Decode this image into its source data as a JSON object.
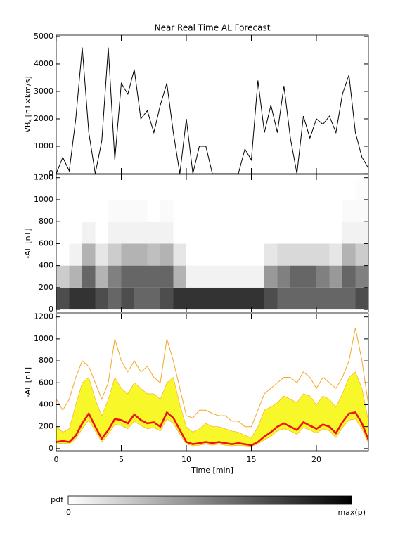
{
  "chart_data": [
    {
      "type": "line",
      "title": "Near Real Time AL Forecast",
      "ylabel": "VB",
      "ylabel_sub": "s",
      "ylabel_unit": "[nT×km/s]",
      "x": [
        0,
        0.5,
        1,
        1.5,
        2,
        2.5,
        3,
        3.5,
        4,
        4.5,
        5,
        5.5,
        6,
        6.5,
        7,
        7.5,
        8,
        8.5,
        9,
        9.5,
        10,
        10.5,
        11,
        11.5,
        12,
        12.5,
        13,
        13.5,
        14,
        14.5,
        15,
        15.5,
        16,
        16.5,
        17,
        17.5,
        18,
        18.5,
        19,
        19.5,
        20,
        20.5,
        21,
        21.5,
        22,
        22.5,
        23,
        23.5,
        24
      ],
      "series": [
        {
          "color": "#000000",
          "values": [
            0,
            600,
            100,
            2000,
            4600,
            1500,
            0,
            1200,
            4600,
            500,
            3300,
            2900,
            3800,
            2000,
            2300,
            1500,
            2500,
            3300,
            1500,
            0,
            2000,
            0,
            1000,
            1000,
            0,
            0,
            0,
            0,
            0,
            900,
            500,
            3400,
            1500,
            2500,
            1500,
            3200,
            1300,
            0,
            2100,
            1300,
            2000,
            1800,
            2100,
            1500,
            2900,
            3600,
            1500,
            600,
            200
          ]
        }
      ],
      "xlim": [
        0,
        24
      ],
      "xticks": [
        0,
        5,
        10,
        15,
        20
      ],
      "ylim": [
        0,
        5050
      ],
      "yticks": [
        0,
        1000,
        2000,
        3000,
        4000,
        5000
      ]
    },
    {
      "type": "heatmap",
      "ylabel": "-AL [nT]",
      "x_edges": [
        0,
        1,
        2,
        3,
        4,
        5,
        6,
        7,
        8,
        9,
        10,
        11,
        12,
        13,
        14,
        15,
        16,
        17,
        18,
        19,
        20,
        21,
        22,
        23,
        24
      ],
      "y_edges": [
        0,
        200,
        400,
        600,
        800,
        1000,
        1200
      ],
      "values": [
        [
          0.7,
          0.2,
          0,
          0,
          0,
          0
        ],
        [
          0.8,
          0.3,
          0.05,
          0,
          0,
          0
        ],
        [
          0.8,
          0.6,
          0.3,
          0.05,
          0,
          0
        ],
        [
          0.7,
          0.3,
          0.1,
          0,
          0,
          0
        ],
        [
          0.6,
          0.5,
          0.2,
          0.05,
          0.02,
          0
        ],
        [
          0.7,
          0.6,
          0.3,
          0.05,
          0.02,
          0
        ],
        [
          0.6,
          0.6,
          0.3,
          0.05,
          0.02,
          0
        ],
        [
          0.6,
          0.6,
          0.25,
          0.05,
          0,
          0
        ],
        [
          0.7,
          0.6,
          0.3,
          0.05,
          0.02,
          0
        ],
        [
          0.8,
          0.3,
          0.1,
          0,
          0,
          0
        ],
        [
          0.8,
          0.05,
          0,
          0,
          0,
          0
        ],
        [
          0.8,
          0.05,
          0,
          0,
          0,
          0
        ],
        [
          0.8,
          0.05,
          0,
          0,
          0,
          0
        ],
        [
          0.8,
          0.05,
          0,
          0,
          0,
          0
        ],
        [
          0.8,
          0.05,
          0,
          0,
          0,
          0
        ],
        [
          0.8,
          0.05,
          0,
          0,
          0,
          0
        ],
        [
          0.7,
          0.4,
          0.1,
          0,
          0,
          0
        ],
        [
          0.6,
          0.5,
          0.15,
          0,
          0,
          0
        ],
        [
          0.6,
          0.6,
          0.15,
          0,
          0,
          0
        ],
        [
          0.6,
          0.6,
          0.15,
          0,
          0,
          0
        ],
        [
          0.6,
          0.5,
          0.15,
          0,
          0,
          0
        ],
        [
          0.6,
          0.4,
          0.1,
          0,
          0,
          0
        ],
        [
          0.6,
          0.6,
          0.3,
          0.05,
          0.02,
          0
        ],
        [
          0.7,
          0.5,
          0.2,
          0.05,
          0.02,
          0.01
        ]
      ],
      "xlim": [
        0,
        24
      ],
      "xticks": [
        0,
        5,
        10,
        15,
        20
      ],
      "ylim": [
        -25,
        1230
      ],
      "yticks": [
        0,
        200,
        400,
        600,
        800,
        1000,
        1200
      ]
    },
    {
      "type": "band",
      "ylabel": "-AL [nT]",
      "xlabel": "Time [min]",
      "x": [
        0,
        0.5,
        1,
        1.5,
        2,
        2.5,
        3,
        3.5,
        4,
        4.5,
        5,
        5.5,
        6,
        6.5,
        7,
        7.5,
        8,
        8.5,
        9,
        9.5,
        10,
        10.5,
        11,
        11.5,
        12,
        12.5,
        13,
        13.5,
        14,
        14.5,
        15,
        15.5,
        16,
        16.5,
        17,
        17.5,
        18,
        18.5,
        19,
        19.5,
        20,
        20.5,
        21,
        21.5,
        22,
        22.5,
        23,
        23.5,
        24
      ],
      "bands": [
        {
          "color": "#f7f72a",
          "lower": [
            40,
            50,
            40,
            90,
            180,
            260,
            160,
            60,
            130,
            220,
            210,
            180,
            250,
            210,
            180,
            190,
            160,
            270,
            230,
            130,
            40,
            25,
            30,
            40,
            30,
            40,
            30,
            25,
            30,
            25,
            20,
            40,
            80,
            110,
            160,
            180,
            160,
            130,
            190,
            170,
            140,
            180,
            160,
            100,
            190,
            260,
            270,
            180,
            50
          ],
          "upper": [
            200,
            150,
            180,
            400,
            600,
            650,
            450,
            300,
            450,
            650,
            550,
            500,
            600,
            550,
            500,
            500,
            450,
            600,
            650,
            400,
            200,
            150,
            180,
            230,
            200,
            200,
            180,
            160,
            150,
            120,
            100,
            200,
            350,
            380,
            420,
            480,
            450,
            420,
            500,
            480,
            400,
            480,
            450,
            380,
            500,
            650,
            700,
            550,
            250
          ]
        }
      ],
      "series": [
        {
          "color": "#f5a623",
          "linewidth": 1,
          "values": [
            450,
            350,
            450,
            650,
            800,
            750,
            600,
            450,
            600,
            1000,
            800,
            700,
            800,
            700,
            750,
            650,
            600,
            1000,
            800,
            550,
            300,
            280,
            350,
            350,
            320,
            300,
            300,
            250,
            250,
            200,
            200,
            350,
            500,
            550,
            600,
            650,
            650,
            600,
            700,
            650,
            550,
            650,
            600,
            550,
            650,
            800,
            1100,
            800,
            400
          ]
        },
        {
          "color": "#ee1111",
          "linewidth": 2.5,
          "values": [
            60,
            70,
            60,
            120,
            230,
            320,
            200,
            90,
            170,
            270,
            260,
            230,
            310,
            260,
            230,
            240,
            200,
            330,
            280,
            170,
            60,
            40,
            50,
            60,
            50,
            60,
            50,
            40,
            50,
            40,
            30,
            60,
            110,
            150,
            200,
            230,
            200,
            170,
            240,
            210,
            180,
            220,
            200,
            140,
            240,
            320,
            330,
            230,
            80
          ]
        }
      ],
      "xlim": [
        0,
        24
      ],
      "xticks": [
        0,
        5,
        10,
        15,
        20
      ],
      "ylim": [
        -20,
        1230
      ],
      "yticks": [
        0,
        200,
        400,
        600,
        800,
        1000,
        1200
      ]
    }
  ],
  "colorbar": {
    "label": "pdf",
    "min_label": "0",
    "max_label": "max(p)"
  }
}
